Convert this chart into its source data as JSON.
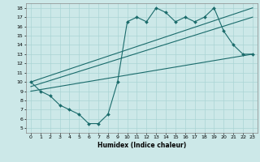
{
  "xlabel": "Humidex (Indice chaleur)",
  "bg_color": "#cce8e8",
  "line_color": "#1a6b6b",
  "grid_color": "#aad4d4",
  "xlim": [
    -0.5,
    23.5
  ],
  "ylim": [
    4.5,
    18.5
  ],
  "xticks": [
    0,
    1,
    2,
    3,
    4,
    5,
    6,
    7,
    8,
    9,
    10,
    11,
    12,
    13,
    14,
    15,
    16,
    17,
    18,
    19,
    20,
    21,
    22,
    23
  ],
  "yticks": [
    5,
    6,
    7,
    8,
    9,
    10,
    11,
    12,
    13,
    14,
    15,
    16,
    17,
    18
  ],
  "curve_x": [
    0,
    1,
    2,
    3,
    4,
    5,
    6,
    7,
    8,
    9,
    10,
    11,
    12,
    13,
    14,
    15,
    16,
    17,
    18,
    19,
    20,
    21,
    22,
    23
  ],
  "curve_y": [
    10.0,
    9.0,
    8.5,
    7.5,
    7.0,
    6.5,
    5.5,
    5.5,
    6.5,
    10.0,
    16.5,
    17.0,
    16.5,
    18.0,
    17.5,
    16.5,
    17.0,
    16.5,
    17.0,
    18.0,
    15.5,
    14.0,
    13.0,
    13.0
  ],
  "line1_x": [
    0,
    23
  ],
  "line1_y": [
    10.0,
    18.0
  ],
  "line2_x": [
    0,
    23
  ],
  "line2_y": [
    9.5,
    17.0
  ],
  "line3_x": [
    0,
    23
  ],
  "line3_y": [
    9.0,
    13.0
  ]
}
